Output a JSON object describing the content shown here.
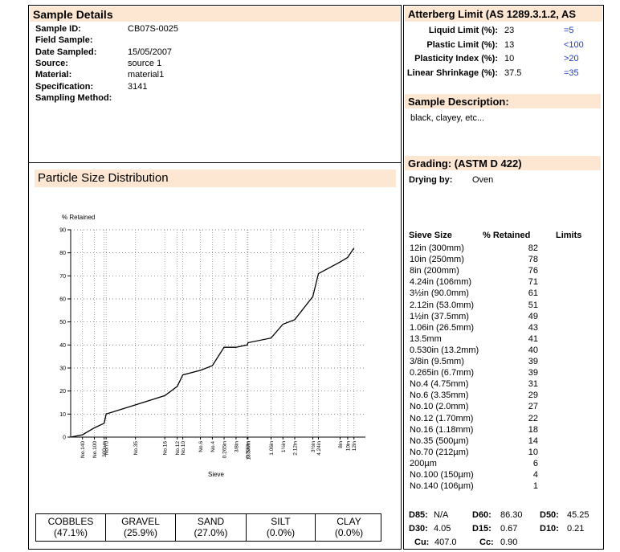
{
  "sample_details": {
    "title": "Sample Details",
    "fields": [
      {
        "label": "Sample ID:",
        "value": "CB07S-0025"
      },
      {
        "label": "Field Sample:",
        "value": ""
      },
      {
        "label": "Date Sampled:",
        "value": "15/05/2007"
      },
      {
        "label": "Source:",
        "value": "source 1"
      },
      {
        "label": "Material:",
        "value": "material1"
      },
      {
        "label": "Specification:",
        "value": "3141"
      },
      {
        "label": "Sampling Method:",
        "value": ""
      }
    ]
  },
  "atterberg": {
    "title": "Atterberg Limit (AS 1289.3.1.2, AS",
    "rows": [
      {
        "label": "Liquid Limit (%):",
        "value": "23",
        "limit": "=5"
      },
      {
        "label": "Plastic Limit (%):",
        "value": "13",
        "limit": "<100"
      },
      {
        "label": "Plasticity Index (%):",
        "value": "10",
        "limit": ">20"
      },
      {
        "label": "Linear Shrinkage (%):",
        "value": "37.5",
        "limit": "=35"
      }
    ]
  },
  "sample_description": {
    "title": "Sample Description:",
    "text": "black, clayey, etc..."
  },
  "grading": {
    "title": "Grading: (ASTM D 422)",
    "drying_label": "Drying by:",
    "drying_value": "Oven",
    "headers": {
      "sieve": "Sieve Size",
      "retained": "% Retained",
      "limits": "Limits"
    },
    "rows": [
      {
        "sieve": "12in (300mm)",
        "retained": "82"
      },
      {
        "sieve": "10in (250mm)",
        "retained": "78"
      },
      {
        "sieve": "8in (200mm)",
        "retained": "76"
      },
      {
        "sieve": "4.24in (106mm)",
        "retained": "71"
      },
      {
        "sieve": "3½in (90.0mm)",
        "retained": "61"
      },
      {
        "sieve": "2.12in (53.0mm)",
        "retained": "51"
      },
      {
        "sieve": "1½in (37.5mm)",
        "retained": "49"
      },
      {
        "sieve": "1.06in (26.5mm)",
        "retained": "43"
      },
      {
        "sieve": "13.5mm",
        "retained": "41"
      },
      {
        "sieve": "0.530in (13.2mm)",
        "retained": "40"
      },
      {
        "sieve": "3/8in (9.5mm)",
        "retained": "39"
      },
      {
        "sieve": "0.265in (6.7mm)",
        "retained": "39"
      },
      {
        "sieve": "No.4 (4.75mm)",
        "retained": "31"
      },
      {
        "sieve": "No.6 (3.35mm)",
        "retained": "29"
      },
      {
        "sieve": "No.10 (2.0mm)",
        "retained": "27"
      },
      {
        "sieve": "No.12 (1.70mm)",
        "retained": "22"
      },
      {
        "sieve": "No.16 (1.18mm)",
        "retained": "18"
      },
      {
        "sieve": "No.35 (500µm)",
        "retained": "14"
      },
      {
        "sieve": "No.70 (212µm)",
        "retained": "10"
      },
      {
        "sieve": "200µm",
        "retained": "6"
      },
      {
        "sieve": "No.100 (150µm)",
        "retained": "4"
      },
      {
        "sieve": "No.140 (106µm)",
        "retained": "1"
      }
    ],
    "coefficients": [
      [
        {
          "label": "D85:",
          "value": "N/A"
        },
        {
          "label": "D60:",
          "value": "86.30"
        },
        {
          "label": "D50:",
          "value": "45.25"
        }
      ],
      [
        {
          "label": "D30:",
          "value": "4.05"
        },
        {
          "label": "D15:",
          "value": "0.67"
        },
        {
          "label": "D10:",
          "value": "0.21"
        }
      ],
      [
        {
          "label": "Cu:",
          "value": "407.0"
        },
        {
          "label": "Cc:",
          "value": "0.90"
        }
      ]
    ]
  },
  "psd": {
    "title": "Particle Size Distribution",
    "fractions": [
      {
        "name": "COBBLES",
        "value": "(47.1%)"
      },
      {
        "name": "GRAVEL",
        "value": "(25.9%)"
      },
      {
        "name": "SAND",
        "value": "(27.0%)"
      },
      {
        "name": "SILT",
        "value": "(0.0%)"
      },
      {
        "name": "CLAY",
        "value": "(0.0%)"
      }
    ]
  },
  "chart_data": {
    "type": "line",
    "title": "",
    "ylabel": "% Retained",
    "xlabel": "Sieve",
    "ylim": [
      0,
      90
    ],
    "yticks": [
      0,
      10,
      20,
      30,
      40,
      50,
      60,
      70,
      80,
      90
    ],
    "x_tick_labels": [
      "No.140",
      "No.100",
      "200µm",
      "No.70",
      "No.35",
      "No.16",
      "No.12",
      "No.10",
      "No.6",
      "No.4",
      "0.265in",
      "3/8in",
      "0.530in",
      "13.5mm",
      "1.06in",
      "1½in",
      "2.12in",
      "3½in",
      "4.24in",
      "8in",
      "10in",
      "12in"
    ],
    "x": [
      0.106,
      0.15,
      0.2,
      0.212,
      0.5,
      1.18,
      1.7,
      2.0,
      3.35,
      4.75,
      6.7,
      9.5,
      13.2,
      13.5,
      26.5,
      37.5,
      53.0,
      90.0,
      106,
      200,
      250,
      300
    ],
    "values": [
      1,
      4,
      6,
      10,
      14,
      18,
      22,
      27,
      29,
      31,
      39,
      39,
      40,
      41,
      43,
      49,
      51,
      61,
      71,
      76,
      78,
      82
    ],
    "grid": true
  }
}
